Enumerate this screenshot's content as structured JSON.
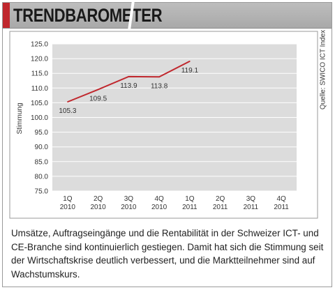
{
  "header": {
    "title": "TRENDBAROMETER"
  },
  "source": "Quelle: SWICO ICT Index",
  "caption": "Umsätze, Auftragseingänge und die Rentabilität in der Schweizer ICT- und CE-Branche sind kontinuierlich gestiegen. Damit hat sich die Stimmung seit der Wirtschaftskrise deutlich verbessert, und die Marktteilnehmer sind auf Wachstumskurs.",
  "colors": {
    "line": "#c0272d",
    "plot_bg": "#dcdcdc",
    "header_accent": "#c0272d"
  },
  "chart_data": {
    "type": "line",
    "ylabel": "Stimmung",
    "xlabel": "",
    "ylim": [
      75.0,
      125.0
    ],
    "yticks": [
      "125.0",
      "120.0",
      "115.0",
      "110.0",
      "105.0",
      "100.0",
      "95.0",
      "90.0",
      "85.0",
      "80.0",
      "75.0"
    ],
    "categories": [
      [
        "1Q",
        "2010"
      ],
      [
        "2Q",
        "2010"
      ],
      [
        "3Q",
        "2010"
      ],
      [
        "4Q",
        "2010"
      ],
      [
        "1Q",
        "2011"
      ],
      [
        "2Q",
        "2011"
      ],
      [
        "3Q",
        "2011"
      ],
      [
        "4Q",
        "2011"
      ]
    ],
    "series": [
      {
        "values": [
          105.3,
          109.5,
          113.9,
          113.8,
          119.1,
          null,
          null,
          null
        ]
      }
    ],
    "data_labels": [
      "105.3",
      "109.5",
      "113.9",
      "113.8",
      "119.1"
    ],
    "grid": true,
    "legend": false
  }
}
